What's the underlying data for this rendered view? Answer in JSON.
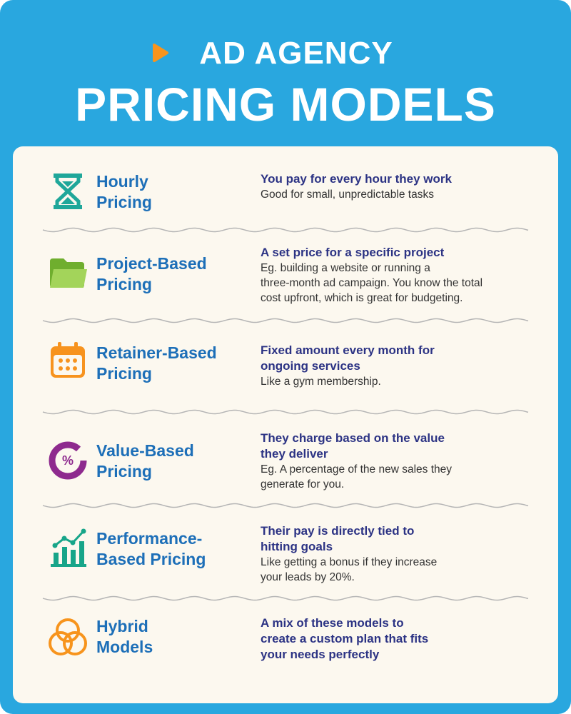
{
  "header": {
    "kicker": "AD AGENCY",
    "title": "PRICING MODELS"
  },
  "models": [
    {
      "name": [
        "Hourly",
        "Pricing"
      ],
      "headline": [
        "You pay for every hour they work"
      ],
      "body": [
        "Good for small, unpredictable tasks"
      ]
    },
    {
      "name": [
        "Project-Based",
        "Pricing"
      ],
      "headline": [
        "A set price for a specific project"
      ],
      "body": [
        "Eg. building a website or running a",
        "three-month ad campaign. You know the total",
        "cost upfront, which is great for budgeting."
      ]
    },
    {
      "name": [
        "Retainer-Based",
        "Pricing"
      ],
      "headline": [
        "Fixed amount every month for",
        "ongoing services"
      ],
      "body": [
        "Like a gym membership."
      ]
    },
    {
      "name": [
        "Value-Based",
        "Pricing"
      ],
      "headline": [
        "They charge based on the value",
        "they deliver"
      ],
      "body": [
        "Eg. A percentage of the new sales they",
        "generate for you."
      ]
    },
    {
      "name": [
        "Performance-",
        "Based Pricing"
      ],
      "headline": [
        "Their pay is directly tied to",
        "hitting goals"
      ],
      "body": [
        "Like getting a bonus if they increase",
        "your leads by 20%."
      ]
    },
    {
      "name": [
        "Hybrid",
        "Models"
      ],
      "headline": [
        "A mix of these models to",
        "create a custom plan that fits",
        "your needs perfectly"
      ],
      "body": []
    }
  ]
}
